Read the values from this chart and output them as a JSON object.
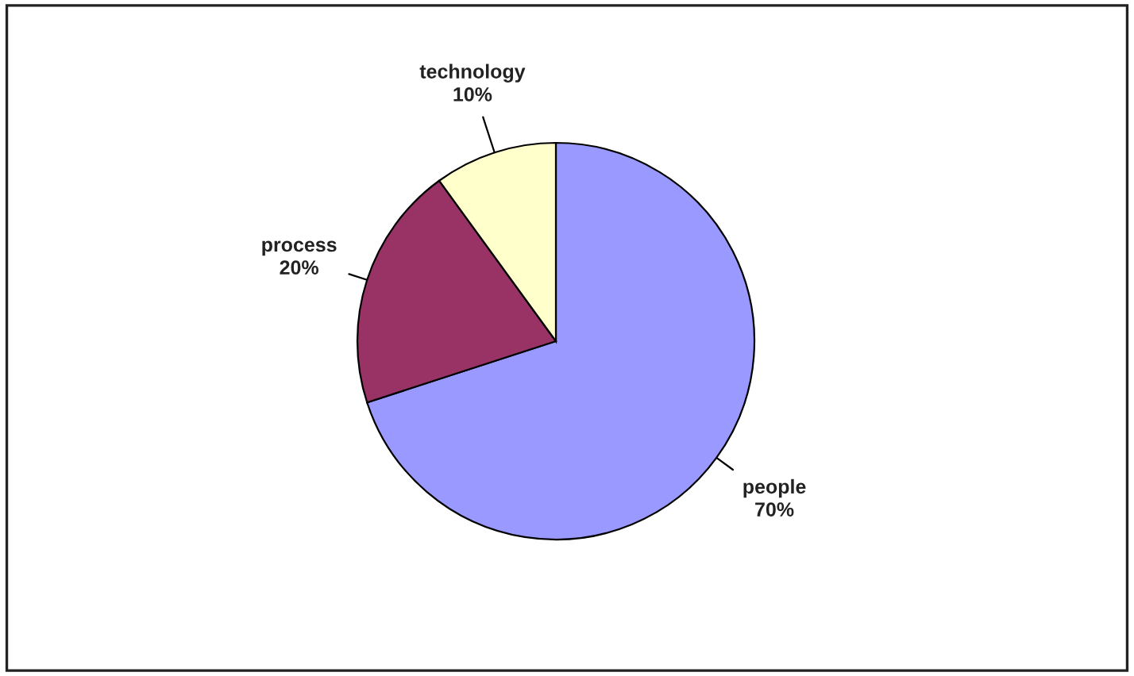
{
  "chart_data": {
    "type": "pie",
    "categories": [
      "people",
      "process",
      "technology"
    ],
    "values": [
      70,
      20,
      10
    ],
    "colors": [
      "#9999ff",
      "#993366",
      "#ffffcc"
    ],
    "value_labels": [
      "70%",
      "20%",
      "10%"
    ]
  }
}
